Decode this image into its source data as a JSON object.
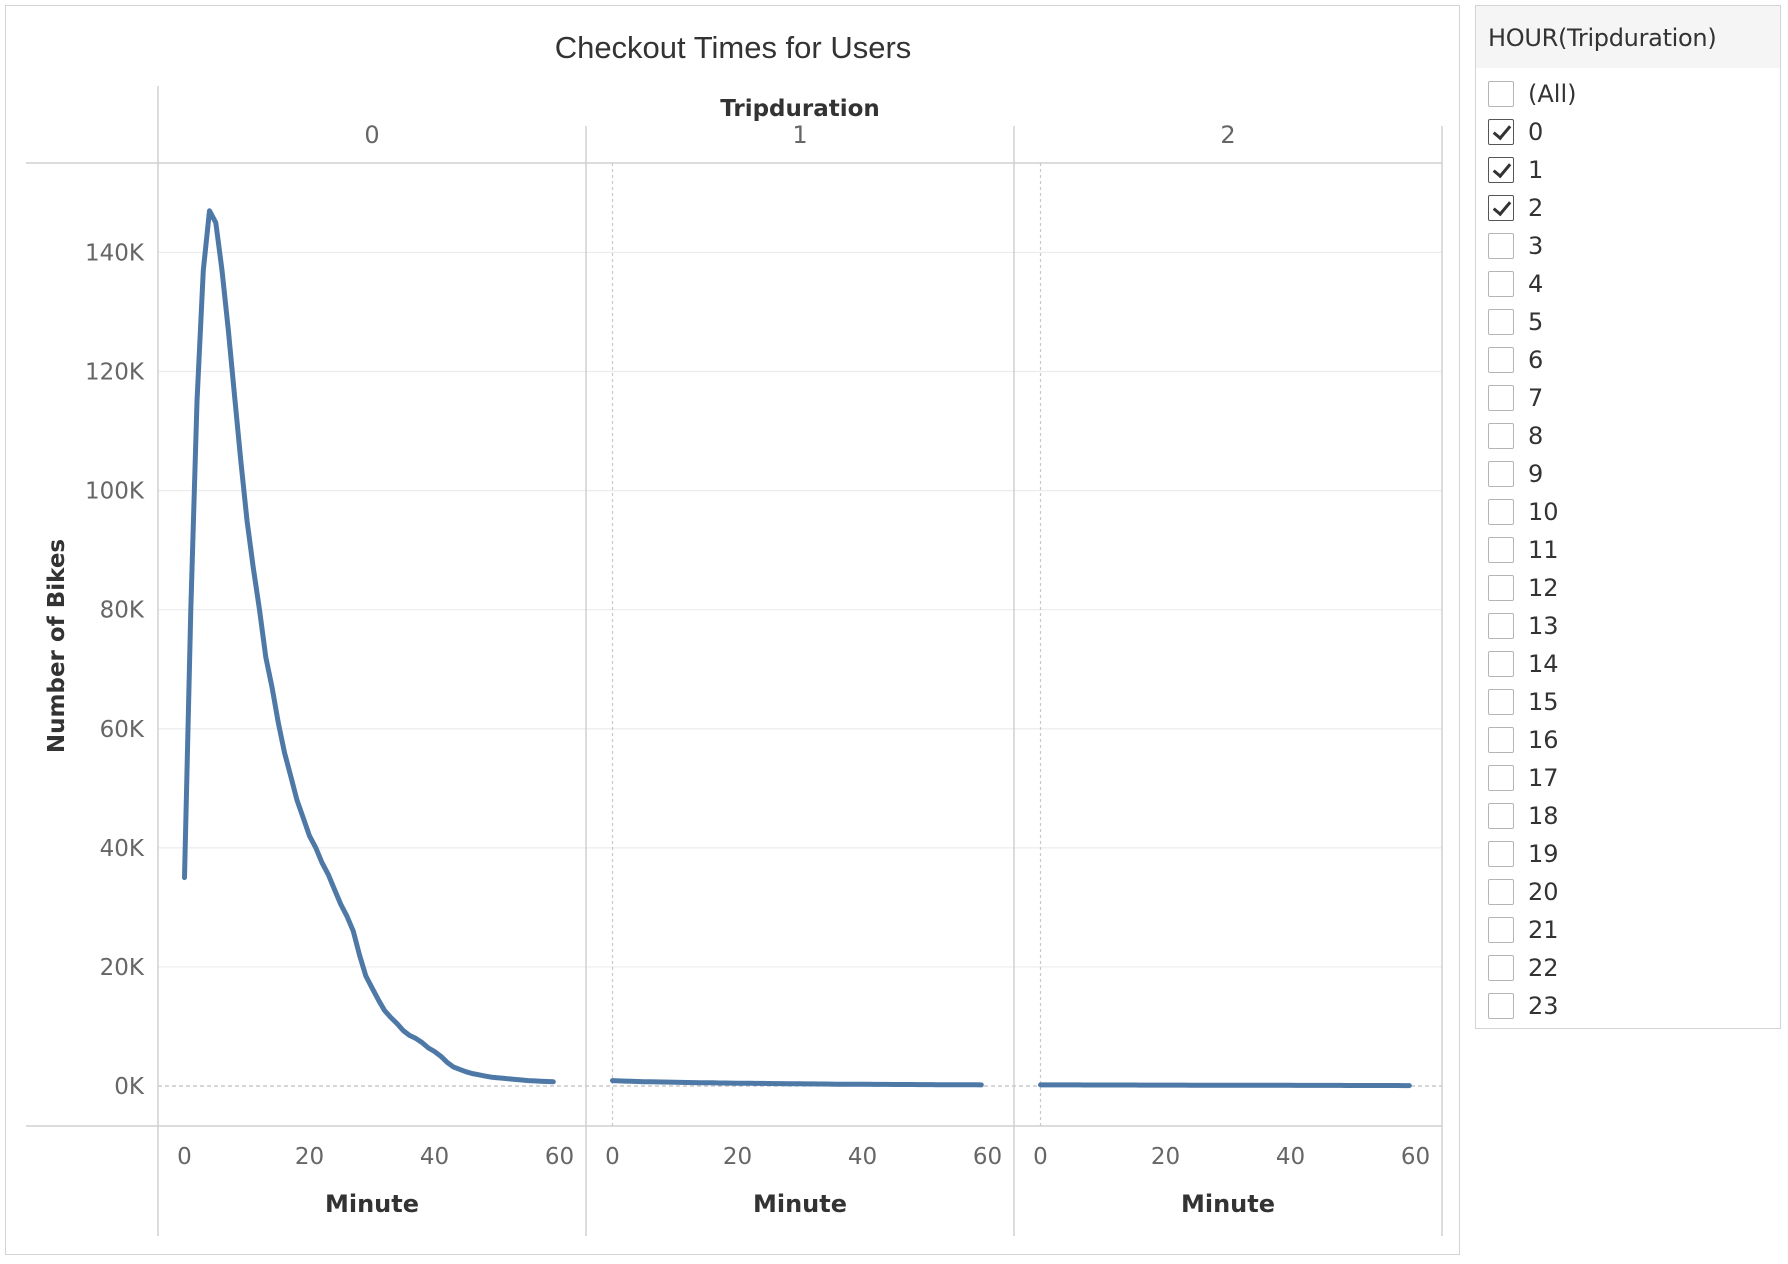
{
  "chart_data": {
    "type": "line",
    "title": "Checkout Times for Users",
    "column_header": "Tripduration",
    "ylabel": "Number of Bikes",
    "xlabel": "Minute",
    "ylim": [
      0,
      152000
    ],
    "y_ticks": [
      {
        "value": 0,
        "label": "0K"
      },
      {
        "value": 20000,
        "label": "20K"
      },
      {
        "value": 40000,
        "label": "40K"
      },
      {
        "value": 60000,
        "label": "60K"
      },
      {
        "value": 80000,
        "label": "80K"
      },
      {
        "value": 100000,
        "label": "100K"
      },
      {
        "value": 120000,
        "label": "120K"
      },
      {
        "value": 140000,
        "label": "140K"
      }
    ],
    "x_ticks": [
      0,
      20,
      40,
      60
    ],
    "xlim": [
      -2,
      62
    ],
    "line_color": "#4e79a7",
    "panels": [
      {
        "label": "0",
        "x": [
          0,
          1,
          2,
          3,
          4,
          5,
          6,
          7,
          8,
          9,
          10,
          11,
          12,
          13,
          14,
          15,
          16,
          17,
          18,
          19,
          20,
          21,
          22,
          23,
          24,
          25,
          26,
          27,
          28,
          29,
          30,
          31,
          32,
          33,
          34,
          35,
          36,
          37,
          38,
          39,
          40,
          41,
          42,
          43,
          44,
          45,
          46,
          47,
          48,
          49,
          50,
          51,
          52,
          53,
          54,
          55,
          56,
          57,
          58,
          59
        ],
        "y": [
          35000,
          80000,
          115000,
          137000,
          147000,
          145000,
          137000,
          127000,
          116000,
          105000,
          95000,
          87000,
          80000,
          72000,
          67000,
          61000,
          56000,
          52000,
          48000,
          45000,
          42000,
          40000,
          37500,
          35500,
          33000,
          30500,
          28500,
          26000,
          22000,
          18500,
          16500,
          14500,
          12700,
          11500,
          10500,
          9300,
          8500,
          8000,
          7300,
          6400,
          5800,
          5000,
          4000,
          3200,
          2800,
          2400,
          2100,
          1900,
          1700,
          1500,
          1400,
          1300,
          1200,
          1100,
          1000,
          900,
          850,
          800,
          750,
          700
        ]
      },
      {
        "label": "1",
        "x": [
          0,
          1,
          2,
          3,
          4,
          5,
          6,
          7,
          8,
          9,
          10,
          11,
          12,
          13,
          14,
          15,
          16,
          17,
          18,
          19,
          20,
          21,
          22,
          23,
          24,
          25,
          26,
          27,
          28,
          29,
          30,
          31,
          32,
          33,
          34,
          35,
          36,
          37,
          38,
          39,
          40,
          41,
          42,
          43,
          44,
          45,
          46,
          47,
          48,
          49,
          50,
          51,
          52,
          53,
          54,
          55,
          56,
          57,
          58,
          59
        ],
        "y": [
          900,
          850,
          820,
          790,
          760,
          730,
          710,
          690,
          670,
          650,
          630,
          610,
          590,
          570,
          550,
          540,
          530,
          510,
          500,
          490,
          470,
          460,
          450,
          440,
          430,
          420,
          410,
          400,
          390,
          380,
          370,
          360,
          350,
          340,
          330,
          320,
          310,
          300,
          295,
          290,
          285,
          280,
          275,
          270,
          265,
          260,
          255,
          250,
          245,
          240,
          235,
          230,
          225,
          220,
          215,
          210,
          205,
          200,
          195,
          190
        ]
      },
      {
        "label": "2",
        "x": [
          0,
          1,
          2,
          3,
          4,
          5,
          6,
          7,
          8,
          9,
          10,
          11,
          12,
          13,
          14,
          15,
          16,
          17,
          18,
          19,
          20,
          21,
          22,
          23,
          24,
          25,
          26,
          27,
          28,
          29,
          30,
          31,
          32,
          33,
          34,
          35,
          36,
          37,
          38,
          39,
          40,
          41,
          42,
          43,
          44,
          45,
          46,
          47,
          48,
          49,
          50,
          51,
          52,
          53,
          54,
          55,
          56,
          57,
          58,
          59
        ],
        "y": [
          190,
          188,
          186,
          184,
          182,
          180,
          178,
          176,
          174,
          172,
          170,
          168,
          166,
          164,
          162,
          160,
          158,
          156,
          154,
          152,
          150,
          148,
          146,
          144,
          142,
          140,
          138,
          136,
          134,
          132,
          130,
          128,
          126,
          124,
          122,
          120,
          118,
          116,
          114,
          112,
          110,
          108,
          106,
          104,
          102,
          100,
          98,
          96,
          94,
          92,
          90,
          88,
          86,
          84,
          82,
          80,
          78,
          76,
          74,
          72
        ]
      }
    ]
  },
  "filter": {
    "title": "HOUR(Tripduration)",
    "items": [
      {
        "label": "(All)",
        "checked": false
      },
      {
        "label": "0",
        "checked": true
      },
      {
        "label": "1",
        "checked": true
      },
      {
        "label": "2",
        "checked": true
      },
      {
        "label": "3",
        "checked": false
      },
      {
        "label": "4",
        "checked": false
      },
      {
        "label": "5",
        "checked": false
      },
      {
        "label": "6",
        "checked": false
      },
      {
        "label": "7",
        "checked": false
      },
      {
        "label": "8",
        "checked": false
      },
      {
        "label": "9",
        "checked": false
      },
      {
        "label": "10",
        "checked": false
      },
      {
        "label": "11",
        "checked": false
      },
      {
        "label": "12",
        "checked": false
      },
      {
        "label": "13",
        "checked": false
      },
      {
        "label": "14",
        "checked": false
      },
      {
        "label": "15",
        "checked": false
      },
      {
        "label": "16",
        "checked": false
      },
      {
        "label": "17",
        "checked": false
      },
      {
        "label": "18",
        "checked": false
      },
      {
        "label": "19",
        "checked": false
      },
      {
        "label": "20",
        "checked": false
      },
      {
        "label": "21",
        "checked": false
      },
      {
        "label": "22",
        "checked": false
      },
      {
        "label": "23",
        "checked": false
      }
    ]
  }
}
